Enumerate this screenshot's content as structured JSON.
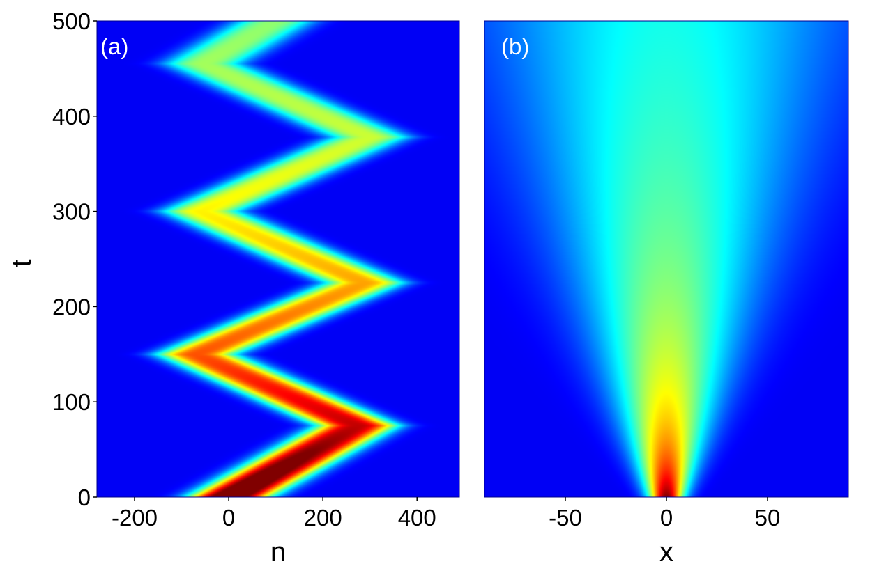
{
  "chart_data": [
    {
      "type": "heatmap",
      "panel_label": "(a)",
      "xlabel": "n",
      "ylabel": "t",
      "xlim": [
        -280,
        490
      ],
      "ylim": [
        0,
        500
      ],
      "xticks": [
        -200,
        0,
        200,
        400
      ],
      "xtick_labels": [
        "-200",
        "0",
        "200",
        "400"
      ],
      "yticks": [
        0,
        100,
        200,
        300,
        400,
        500
      ],
      "ytick_labels": [
        "0",
        "100",
        "200",
        "300",
        "400",
        "500"
      ],
      "colormap": "jet",
      "background_color": "#00008f",
      "center_path": {
        "t": [
          0,
          75,
          150,
          225,
          300,
          378,
          455,
          500
        ],
        "n": [
          0,
          275,
          -70,
          290,
          -60,
          300,
          -55,
          100
        ]
      },
      "peak_intensity": {
        "t": [
          0,
          75,
          150,
          225,
          300,
          378,
          455,
          500
        ],
        "value": [
          1.0,
          0.82,
          0.68,
          0.6,
          0.52,
          0.46,
          0.42,
          0.4
        ]
      },
      "beam_width": 85,
      "grid": false
    },
    {
      "type": "heatmap",
      "panel_label": "(b)",
      "xlabel": "x",
      "ylabel": "",
      "xlim": [
        -90,
        90
      ],
      "ylim": [
        0,
        500
      ],
      "xticks": [
        -50,
        0,
        50
      ],
      "xtick_labels": [
        "-50",
        "0",
        "50"
      ],
      "colormap": "jet",
      "background_color": "#00008f",
      "center": 0,
      "initial_width": 6,
      "spread_rate": 0.11,
      "grid": false
    }
  ],
  "colors": {
    "jet_low": "#00008f",
    "jet_high": "#800000"
  }
}
